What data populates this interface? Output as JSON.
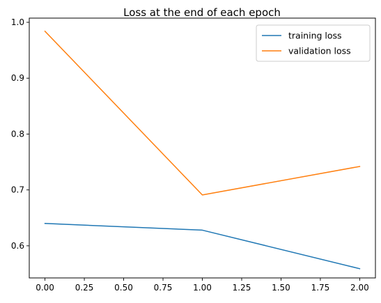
{
  "chart_data": {
    "type": "line",
    "title": "Loss at the end of each epoch",
    "xlabel": "",
    "ylabel": "",
    "xlim": [
      -0.1,
      2.1
    ],
    "ylim": [
      0.5425,
      1.0075
    ],
    "x": [
      0.0,
      1.0,
      2.0
    ],
    "xticks": [
      0.0,
      0.25,
      0.5,
      0.75,
      1.0,
      1.25,
      1.5,
      1.75,
      2.0
    ],
    "xtick_labels": [
      "0.00",
      "0.25",
      "0.50",
      "0.75",
      "1.00",
      "1.25",
      "1.50",
      "1.75",
      "2.00"
    ],
    "yticks": [
      0.6,
      0.7,
      0.8,
      0.9,
      1.0
    ],
    "ytick_labels": [
      "0.6",
      "0.7",
      "0.8",
      "0.9",
      "1.0"
    ],
    "grid": false,
    "legend_position": "top-right",
    "series": [
      {
        "name": "training loss",
        "color": "#1f77b4",
        "values": [
          0.64,
          0.628,
          0.559
        ]
      },
      {
        "name": "validation loss",
        "color": "#ff7f0e",
        "values": [
          0.984,
          0.691,
          0.742
        ]
      }
    ]
  }
}
